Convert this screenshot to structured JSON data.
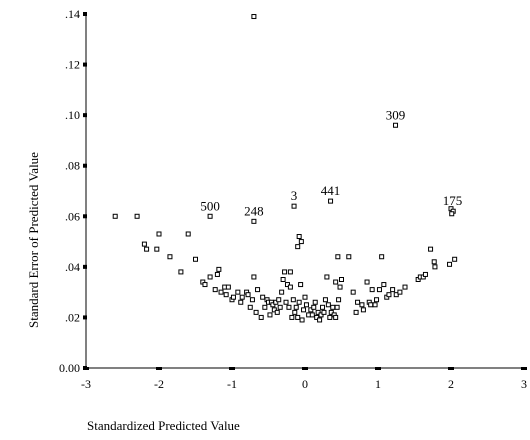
{
  "chart_data": {
    "type": "scatter",
    "title": "",
    "xlabel": "Standardized Predicted Value",
    "ylabel": "Standard Error of Predicted Value",
    "xlim": [
      -3,
      3
    ],
    "ylim": [
      0.0,
      0.14
    ],
    "x_ticks": [
      -3,
      -2,
      -1,
      0,
      1,
      2,
      3
    ],
    "x_tick_labels": [
      "-3",
      "-2",
      "-1",
      "0",
      "1",
      "2",
      "3"
    ],
    "y_ticks": [
      0.0,
      0.02,
      0.04,
      0.06,
      0.08,
      0.1,
      0.12,
      0.14
    ],
    "y_tick_labels": [
      "0.00",
      ".02",
      ".04",
      ".06",
      ".08",
      ".10",
      ".12",
      ".14"
    ],
    "grid": false,
    "legend": "none",
    "marker": "open-square",
    "labeled_points": [
      {
        "label": "309",
        "x": 1.24,
        "y": 0.096
      },
      {
        "label": "500",
        "x": -1.3,
        "y": 0.06
      },
      {
        "label": "248",
        "x": -0.7,
        "y": 0.058
      },
      {
        "label": "3",
        "x": -0.15,
        "y": 0.064
      },
      {
        "label": "441",
        "x": 0.35,
        "y": 0.066
      },
      {
        "label": "175",
        "x": 2.02,
        "y": 0.062
      }
    ],
    "points": [
      [
        -0.7,
        0.139
      ],
      [
        1.24,
        0.096
      ],
      [
        -0.15,
        0.064
      ],
      [
        0.35,
        0.066
      ],
      [
        -1.3,
        0.06
      ],
      [
        -0.7,
        0.058
      ],
      [
        2.0,
        0.063
      ],
      [
        2.03,
        0.062
      ],
      [
        2.01,
        0.061
      ],
      [
        -2.6,
        0.06
      ],
      [
        -2.3,
        0.06
      ],
      [
        -0.08,
        0.052
      ],
      [
        -0.05,
        0.05
      ],
      [
        -0.1,
        0.048
      ],
      [
        -2.2,
        0.049
      ],
      [
        -2.17,
        0.047
      ],
      [
        -2.0,
        0.053
      ],
      [
        -2.03,
        0.047
      ],
      [
        -1.85,
        0.044
      ],
      [
        -1.7,
        0.038
      ],
      [
        -1.6,
        0.053
      ],
      [
        -1.5,
        0.043
      ],
      [
        -1.4,
        0.034
      ],
      [
        -1.37,
        0.033
      ],
      [
        -1.3,
        0.036
      ],
      [
        -1.2,
        0.037
      ],
      [
        -1.18,
        0.039
      ],
      [
        -1.1,
        0.032
      ],
      [
        -1.05,
        0.032
      ],
      [
        -1.23,
        0.031
      ],
      [
        -1.15,
        0.03
      ],
      [
        -1.08,
        0.029
      ],
      [
        -1.0,
        0.027
      ],
      [
        -0.98,
        0.028
      ],
      [
        -0.92,
        0.03
      ],
      [
        -0.88,
        0.026
      ],
      [
        -0.86,
        0.028
      ],
      [
        -0.8,
        0.03
      ],
      [
        -0.78,
        0.029
      ],
      [
        -0.75,
        0.024
      ],
      [
        -0.72,
        0.027
      ],
      [
        -0.7,
        0.036
      ],
      [
        -0.67,
        0.022
      ],
      [
        -0.65,
        0.031
      ],
      [
        -0.6,
        0.02
      ],
      [
        -0.58,
        0.028
      ],
      [
        -0.55,
        0.024
      ],
      [
        -0.52,
        0.027
      ],
      [
        -0.5,
        0.026
      ],
      [
        -0.48,
        0.021
      ],
      [
        -0.46,
        0.026
      ],
      [
        -0.44,
        0.025
      ],
      [
        -0.42,
        0.023
      ],
      [
        -0.4,
        0.026
      ],
      [
        -0.38,
        0.022
      ],
      [
        -0.36,
        0.027
      ],
      [
        -0.34,
        0.024
      ],
      [
        -0.32,
        0.03
      ],
      [
        -0.3,
        0.035
      ],
      [
        -0.28,
        0.038
      ],
      [
        -0.26,
        0.026
      ],
      [
        -0.24,
        0.033
      ],
      [
        -0.22,
        0.024
      ],
      [
        -0.2,
        0.038
      ],
      [
        -0.2,
        0.032
      ],
      [
        -0.18,
        0.02
      ],
      [
        -0.16,
        0.027
      ],
      [
        -0.14,
        0.022
      ],
      [
        -0.12,
        0.024
      ],
      [
        -0.1,
        0.02
      ],
      [
        -0.08,
        0.026
      ],
      [
        -0.06,
        0.033
      ],
      [
        -0.04,
        0.019
      ],
      [
        -0.02,
        0.023
      ],
      [
        0.0,
        0.028
      ],
      [
        0.02,
        0.025
      ],
      [
        0.05,
        0.021
      ],
      [
        0.08,
        0.023
      ],
      [
        0.1,
        0.021
      ],
      [
        0.12,
        0.024
      ],
      [
        0.14,
        0.026
      ],
      [
        0.16,
        0.02
      ],
      [
        0.18,
        0.022
      ],
      [
        0.2,
        0.019
      ],
      [
        0.22,
        0.021
      ],
      [
        0.24,
        0.024
      ],
      [
        0.26,
        0.022
      ],
      [
        0.28,
        0.027
      ],
      [
        0.3,
        0.036
      ],
      [
        0.32,
        0.025
      ],
      [
        0.34,
        0.02
      ],
      [
        0.36,
        0.022
      ],
      [
        0.38,
        0.024
      ],
      [
        0.4,
        0.021
      ],
      [
        0.42,
        0.02
      ],
      [
        0.44,
        0.024
      ],
      [
        0.46,
        0.027
      ],
      [
        0.48,
        0.032
      ],
      [
        0.5,
        0.035
      ],
      [
        0.42,
        0.034
      ],
      [
        0.45,
        0.044
      ],
      [
        0.6,
        0.044
      ],
      [
        0.66,
        0.03
      ],
      [
        0.7,
        0.022
      ],
      [
        0.72,
        0.026
      ],
      [
        0.78,
        0.025
      ],
      [
        0.8,
        0.023
      ],
      [
        0.85,
        0.034
      ],
      [
        0.88,
        0.026
      ],
      [
        0.9,
        0.025
      ],
      [
        0.92,
        0.031
      ],
      [
        0.96,
        0.025
      ],
      [
        0.98,
        0.027
      ],
      [
        1.02,
        0.031
      ],
      [
        1.05,
        0.044
      ],
      [
        1.08,
        0.033
      ],
      [
        1.12,
        0.028
      ],
      [
        1.15,
        0.029
      ],
      [
        1.2,
        0.031
      ],
      [
        1.25,
        0.029
      ],
      [
        1.3,
        0.03
      ],
      [
        1.37,
        0.032
      ],
      [
        1.55,
        0.035
      ],
      [
        1.58,
        0.036
      ],
      [
        1.62,
        0.036
      ],
      [
        1.65,
        0.037
      ],
      [
        1.72,
        0.047
      ],
      [
        1.77,
        0.042
      ],
      [
        1.78,
        0.04
      ],
      [
        1.98,
        0.041
      ],
      [
        2.05,
        0.043
      ]
    ]
  }
}
